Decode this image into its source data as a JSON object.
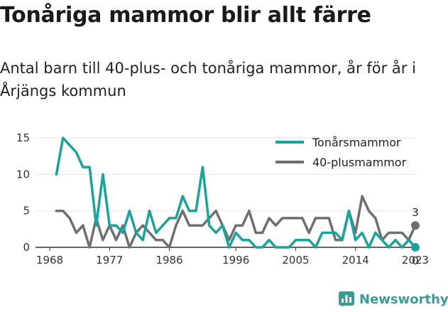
{
  "title": "Tonåriga mammor blir allt färre",
  "subtitle": "Antal barn till 40-plus- och tonåriga mammor, år för år i Årjängs kommun",
  "brand": {
    "name": "Newsworthy",
    "icon": "newsworthy-logo-icon"
  },
  "colors": {
    "teen": "#1aa39a",
    "forty": "#6f6e73",
    "axis": "#333333",
    "grid": "#e6e6e6"
  },
  "chart_data": {
    "type": "line",
    "title": "Tonåriga mammor blir allt färre",
    "xlabel": "",
    "ylabel": "",
    "x": [
      1969,
      1970,
      1971,
      1972,
      1973,
      1974,
      1975,
      1976,
      1977,
      1978,
      1979,
      1980,
      1981,
      1982,
      1983,
      1984,
      1985,
      1986,
      1987,
      1988,
      1989,
      1990,
      1991,
      1992,
      1993,
      1994,
      1995,
      1996,
      1997,
      1998,
      1999,
      2000,
      2001,
      2002,
      2003,
      2004,
      2005,
      2006,
      2007,
      2008,
      2009,
      2010,
      2011,
      2012,
      2013,
      2014,
      2015,
      2016,
      2017,
      2018,
      2019,
      2020,
      2021,
      2022,
      2023
    ],
    "xlim": [
      1968,
      2023
    ],
    "ylim": [
      0,
      15
    ],
    "x_ticks": [
      "1968",
      "1977",
      "1986",
      "1996",
      "2005",
      "2014",
      "2023"
    ],
    "x_tick_values": [
      1968,
      1977,
      1986,
      1996,
      2005,
      2014,
      2023
    ],
    "y_ticks": [
      "0",
      "5",
      "10",
      "15"
    ],
    "y_tick_values": [
      0,
      5,
      10,
      15
    ],
    "grid": true,
    "legend_position": "top-right",
    "series": [
      {
        "name": "Tonårsmammor",
        "color": "#1aa39a",
        "values": [
          10,
          15,
          14,
          13,
          11,
          11,
          3,
          10,
          3,
          3,
          2,
          5,
          2,
          1,
          5,
          2,
          3,
          4,
          4,
          7,
          5,
          5,
          11,
          3,
          2,
          3,
          0,
          2,
          1,
          1,
          0,
          0,
          1,
          0,
          0,
          0,
          1,
          1,
          1,
          0,
          2,
          2,
          2,
          1,
          5,
          1,
          2,
          0,
          2,
          1,
          0,
          1,
          0,
          1,
          0
        ],
        "end_label": "0"
      },
      {
        "name": "40-plusmammor",
        "color": "#6f6e73",
        "values": [
          5,
          5,
          4,
          2,
          3,
          0,
          4,
          1,
          3,
          1,
          3,
          0,
          2,
          3,
          2,
          1,
          1,
          0,
          3,
          5,
          3,
          3,
          3,
          4,
          5,
          3,
          1,
          3,
          3,
          5,
          2,
          2,
          4,
          3,
          4,
          4,
          4,
          4,
          2,
          4,
          4,
          4,
          1,
          1,
          5,
          2,
          7,
          5,
          4,
          1,
          2,
          2,
          2,
          1,
          3
        ],
        "end_label": "3"
      }
    ]
  }
}
